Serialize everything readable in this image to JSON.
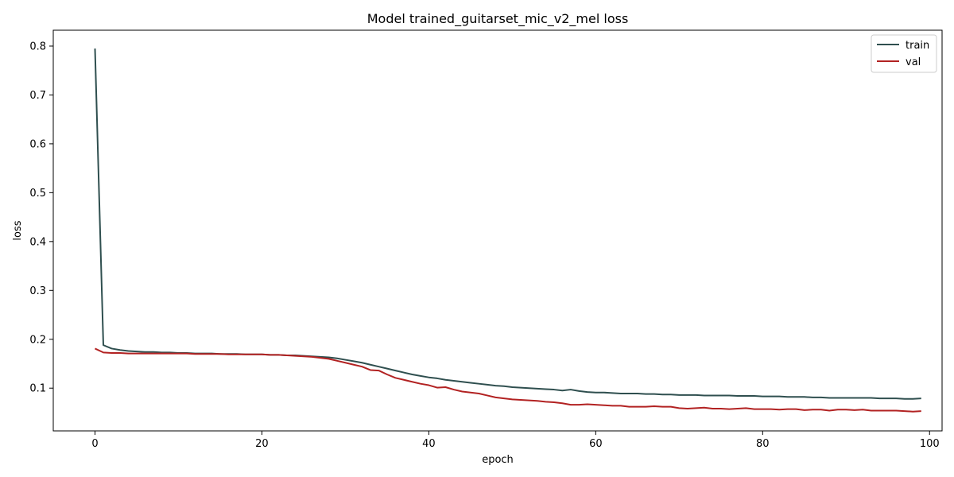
{
  "chart_data": {
    "type": "line",
    "title": "Model trained_guitarset_mic_v2_mel loss",
    "xlabel": "epoch",
    "ylabel": "loss",
    "xlim": [
      -5,
      101.5
    ],
    "ylim": [
      0.0125,
      0.8325
    ],
    "xticks": [
      0,
      20,
      40,
      60,
      80,
      100
    ],
    "yticks": [
      0.1,
      0.2,
      0.3,
      0.4,
      0.5,
      0.6,
      0.7,
      0.8
    ],
    "xtick_labels": [
      "0",
      "20",
      "40",
      "60",
      "80",
      "100"
    ],
    "ytick_labels": [
      "0.1",
      "0.2",
      "0.3",
      "0.4",
      "0.5",
      "0.6",
      "0.7",
      "0.8"
    ],
    "grid": false,
    "legend_position": "top-right",
    "series": [
      {
        "name": "train",
        "color": "#2f4f4f",
        "values": [
          0.795,
          0.188,
          0.181,
          0.178,
          0.176,
          0.175,
          0.174,
          0.174,
          0.173,
          0.173,
          0.172,
          0.172,
          0.171,
          0.171,
          0.171,
          0.17,
          0.17,
          0.17,
          0.169,
          0.169,
          0.169,
          0.168,
          0.168,
          0.167,
          0.167,
          0.166,
          0.165,
          0.164,
          0.163,
          0.161,
          0.158,
          0.155,
          0.152,
          0.148,
          0.144,
          0.14,
          0.136,
          0.132,
          0.128,
          0.125,
          0.122,
          0.12,
          0.117,
          0.115,
          0.113,
          0.111,
          0.109,
          0.107,
          0.105,
          0.104,
          0.102,
          0.101,
          0.1,
          0.099,
          0.098,
          0.097,
          0.095,
          0.097,
          0.094,
          0.092,
          0.091,
          0.091,
          0.09,
          0.089,
          0.089,
          0.089,
          0.088,
          0.088,
          0.087,
          0.087,
          0.086,
          0.086,
          0.086,
          0.085,
          0.085,
          0.085,
          0.085,
          0.084,
          0.084,
          0.084,
          0.083,
          0.083,
          0.083,
          0.082,
          0.082,
          0.082,
          0.081,
          0.081,
          0.08,
          0.08,
          0.08,
          0.08,
          0.08,
          0.08,
          0.079,
          0.079,
          0.079,
          0.078,
          0.078,
          0.079
        ]
      },
      {
        "name": "val",
        "color": "#b22222",
        "values": [
          0.181,
          0.173,
          0.172,
          0.172,
          0.171,
          0.171,
          0.171,
          0.171,
          0.171,
          0.171,
          0.171,
          0.171,
          0.17,
          0.17,
          0.17,
          0.17,
          0.169,
          0.169,
          0.169,
          0.169,
          0.169,
          0.168,
          0.168,
          0.167,
          0.166,
          0.165,
          0.164,
          0.162,
          0.16,
          0.156,
          0.152,
          0.148,
          0.144,
          0.137,
          0.136,
          0.128,
          0.121,
          0.117,
          0.113,
          0.109,
          0.106,
          0.101,
          0.102,
          0.097,
          0.093,
          0.091,
          0.089,
          0.085,
          0.081,
          0.079,
          0.077,
          0.076,
          0.075,
          0.074,
          0.072,
          0.071,
          0.069,
          0.066,
          0.066,
          0.067,
          0.066,
          0.065,
          0.064,
          0.064,
          0.062,
          0.062,
          0.062,
          0.063,
          0.062,
          0.062,
          0.059,
          0.058,
          0.059,
          0.06,
          0.058,
          0.058,
          0.057,
          0.058,
          0.059,
          0.057,
          0.057,
          0.057,
          0.056,
          0.057,
          0.057,
          0.055,
          0.056,
          0.056,
          0.054,
          0.056,
          0.056,
          0.055,
          0.056,
          0.054,
          0.054,
          0.054,
          0.054,
          0.053,
          0.052,
          0.053
        ]
      }
    ]
  }
}
